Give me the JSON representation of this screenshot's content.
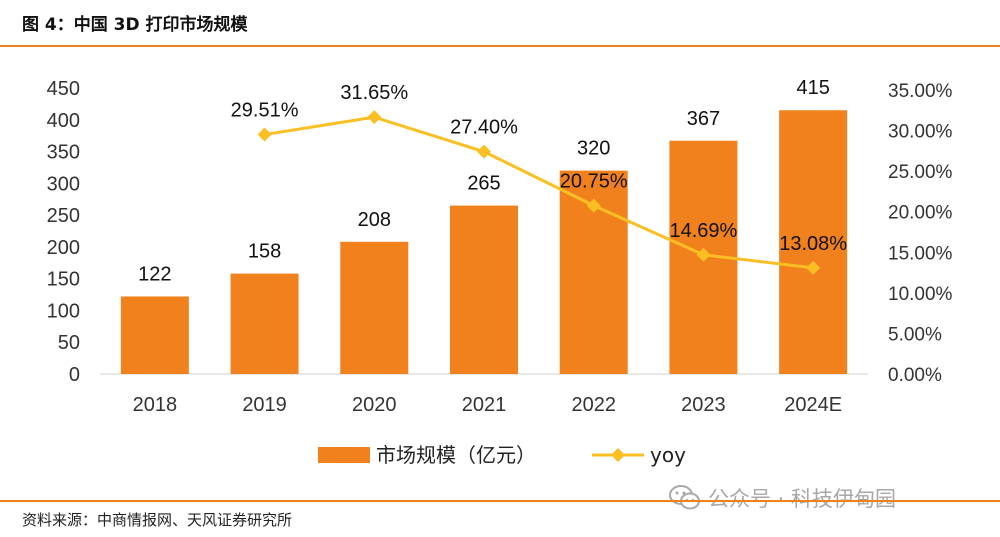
{
  "figure": {
    "title": "图 4：中国 3D 打印市场规模",
    "source": "资料来源：中商情报网、天风证券研究所",
    "watermark": "公众号 · 科技伊甸园"
  },
  "colors": {
    "bar": "#f0811c",
    "line": "#fbbf24",
    "rule": "#f0811c"
  },
  "chart_data": {
    "type": "bar",
    "categories": [
      "2018",
      "2019",
      "2020",
      "2021",
      "2022",
      "2023",
      "2024E"
    ],
    "series": [
      {
        "name": "市场规模（亿元）",
        "type": "bar",
        "axis": "left",
        "values": [
          122,
          158,
          208,
          265,
          320,
          367,
          415
        ],
        "labels": [
          "122",
          "158",
          "208",
          "265",
          "320",
          "367",
          "415"
        ]
      },
      {
        "name": "yoy",
        "type": "line",
        "axis": "right",
        "values": [
          null,
          29.51,
          31.65,
          27.4,
          20.75,
          14.69,
          13.08
        ],
        "labels": [
          null,
          "29.51%",
          "31.65%",
          "27.40%",
          "20.75%",
          "14.69%",
          "13.08%"
        ]
      }
    ],
    "y_left": {
      "min": 0,
      "max": 450,
      "ticks": [
        "0",
        "50",
        "100",
        "150",
        "200",
        "250",
        "300",
        "350",
        "400",
        "450"
      ]
    },
    "y_right": {
      "min": 0,
      "max": 35,
      "ticks": [
        "0.00%",
        "5.00%",
        "10.00%",
        "15.00%",
        "20.00%",
        "25.00%",
        "30.00%",
        "35.00%"
      ]
    },
    "legend_position": "bottom",
    "grid": false
  }
}
